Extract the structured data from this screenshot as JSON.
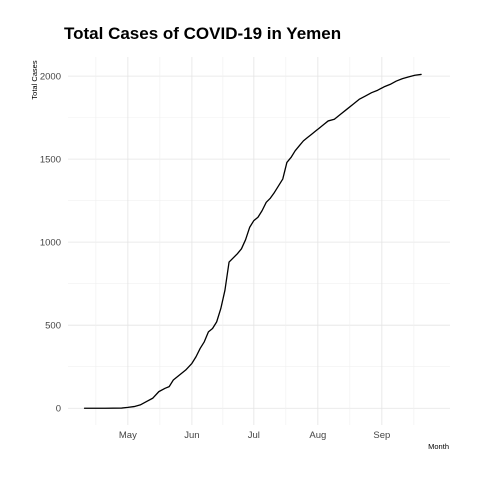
{
  "chart_data": {
    "type": "line",
    "title": "Total Cases of COVID-19 in Yemen",
    "xlabel": "Month",
    "ylabel": "Total Cases",
    "x_ticks": [
      {
        "label": "May",
        "date": "2020-05-01"
      },
      {
        "label": "Jun",
        "date": "2020-06-01"
      },
      {
        "label": "Jul",
        "date": "2020-07-01"
      },
      {
        "label": "Aug",
        "date": "2020-08-01"
      },
      {
        "label": "Sep",
        "date": "2020-09-01"
      }
    ],
    "y_ticks": [
      0,
      500,
      1000,
      1500,
      2000
    ],
    "xlim": [
      "2020-04-02",
      "2020-10-04"
    ],
    "ylim": [
      -101,
      2115
    ],
    "grid": true,
    "legend": "none",
    "series": [
      {
        "color": "#000000",
        "points": [
          [
            "2020-04-10",
            0
          ],
          [
            "2020-04-20",
            0
          ],
          [
            "2020-04-28",
            1
          ],
          [
            "2020-05-01",
            5
          ],
          [
            "2020-05-04",
            10
          ],
          [
            "2020-05-07",
            20
          ],
          [
            "2020-05-10",
            40
          ],
          [
            "2020-05-13",
            60
          ],
          [
            "2020-05-16",
            100
          ],
          [
            "2020-05-19",
            120
          ],
          [
            "2020-05-21",
            130
          ],
          [
            "2020-05-23",
            170
          ],
          [
            "2020-05-26",
            200
          ],
          [
            "2020-05-29",
            230
          ],
          [
            "2020-06-01",
            270
          ],
          [
            "2020-06-03",
            310
          ],
          [
            "2020-06-05",
            360
          ],
          [
            "2020-06-07",
            400
          ],
          [
            "2020-06-09",
            460
          ],
          [
            "2020-06-11",
            480
          ],
          [
            "2020-06-13",
            520
          ],
          [
            "2020-06-15",
            600
          ],
          [
            "2020-06-17",
            710
          ],
          [
            "2020-06-19",
            880
          ],
          [
            "2020-06-21",
            905
          ],
          [
            "2020-06-23",
            930
          ],
          [
            "2020-06-25",
            960
          ],
          [
            "2020-06-27",
            1015
          ],
          [
            "2020-06-29",
            1090
          ],
          [
            "2020-07-01",
            1130
          ],
          [
            "2020-07-03",
            1150
          ],
          [
            "2020-07-05",
            1190
          ],
          [
            "2020-07-07",
            1240
          ],
          [
            "2020-07-09",
            1265
          ],
          [
            "2020-07-11",
            1300
          ],
          [
            "2020-07-13",
            1340
          ],
          [
            "2020-07-15",
            1380
          ],
          [
            "2020-07-17",
            1480
          ],
          [
            "2020-07-19",
            1510
          ],
          [
            "2020-07-21",
            1550
          ],
          [
            "2020-07-23",
            1580
          ],
          [
            "2020-07-25",
            1610
          ],
          [
            "2020-07-27",
            1630
          ],
          [
            "2020-07-29",
            1650
          ],
          [
            "2020-07-31",
            1670
          ],
          [
            "2020-08-02",
            1690
          ],
          [
            "2020-08-04",
            1710
          ],
          [
            "2020-08-06",
            1730
          ],
          [
            "2020-08-09",
            1740
          ],
          [
            "2020-08-12",
            1770
          ],
          [
            "2020-08-15",
            1800
          ],
          [
            "2020-08-18",
            1830
          ],
          [
            "2020-08-21",
            1860
          ],
          [
            "2020-08-24",
            1880
          ],
          [
            "2020-08-27",
            1900
          ],
          [
            "2020-08-30",
            1915
          ],
          [
            "2020-09-02",
            1935
          ],
          [
            "2020-09-05",
            1950
          ],
          [
            "2020-09-08",
            1970
          ],
          [
            "2020-09-11",
            1985
          ],
          [
            "2020-09-14",
            1995
          ],
          [
            "2020-09-17",
            2005
          ],
          [
            "2020-09-20",
            2010
          ]
        ]
      }
    ]
  }
}
